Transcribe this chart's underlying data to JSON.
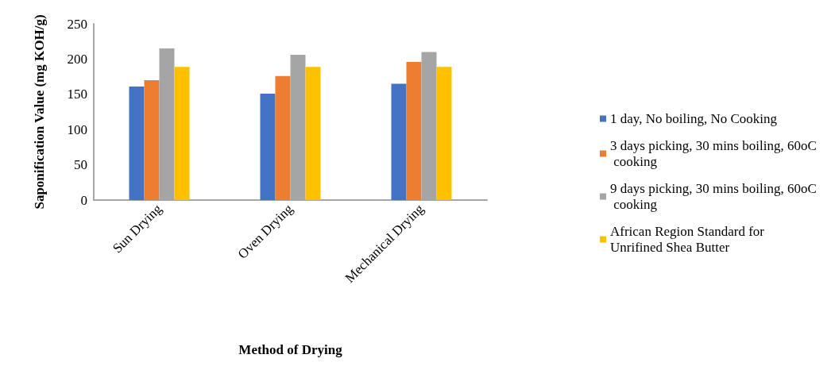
{
  "chart_data": {
    "type": "bar",
    "xlabel": "Method of Drying",
    "ylabel": "Saponification Value (mg KOH/g)",
    "categories": [
      "Sun Drying",
      "Oven Drying",
      "Mechanical Drying"
    ],
    "series": [
      {
        "name": "1 day, No boiling, No Cooking",
        "color": "#4472c4",
        "values": [
          161,
          151,
          165
        ]
      },
      {
        "name": "3 days picking, 30 mins boiling, 60oC cooking",
        "color": "#ed7d31",
        "values": [
          170,
          176,
          196
        ]
      },
      {
        "name": "9 days picking, 30 mins boiling, 60oC cooking",
        "color": "#a5a5a5",
        "values": [
          215,
          206,
          210
        ]
      },
      {
        "name": "African Region Standard for Unrifined Shea Butter",
        "color": "#ffc000",
        "values": [
          189,
          189,
          189
        ]
      }
    ],
    "ylim": [
      0,
      250
    ],
    "yticks": [
      0,
      50,
      100,
      150,
      200,
      250
    ],
    "grid": false,
    "legend": "right"
  }
}
